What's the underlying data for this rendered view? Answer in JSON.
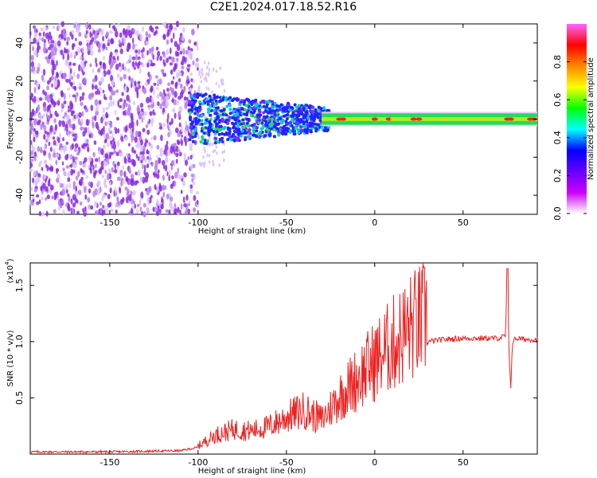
{
  "figure": {
    "title": "C2E1.2024.017.18.52.R16"
  },
  "chart_data": [
    {
      "type": "heatmap",
      "xlabel": "Height of straight line (km)",
      "ylabel": "Frequency (Hz)",
      "xlim": [
        -195,
        92
      ],
      "ylim": [
        -50,
        50
      ],
      "x_ticks": [
        -150,
        -100,
        -50,
        0,
        50
      ],
      "y_ticks": [
        -40,
        -20,
        0,
        20,
        40
      ],
      "colorbar": {
        "label": "Normalized spectral amplitude",
        "range": [
          0,
          1
        ],
        "ticks": [
          "0.0",
          "0.2",
          "0.4",
          "0.6",
          "0.8"
        ],
        "colors": [
          "#ffffff",
          "#cc00ff",
          "#6600ff",
          "#0000ff",
          "#00ffff",
          "#00ff00",
          "#ffff00",
          "#ff8800",
          "#ff0000",
          "#ff66ff"
        ]
      },
      "regions": [
        {
          "x_range": [
            -195,
            -100
          ],
          "description_level": 0.15
        },
        {
          "x_range": [
            -100,
            -30
          ],
          "description_level": 0.35
        },
        {
          "x_range": [
            -30,
            92
          ],
          "description_level": 0.6
        }
      ]
    },
    {
      "type": "line",
      "xlabel": "Height of straight line (km)",
      "ylabel": "SNR (10 * v/v)",
      "y_multiplier": "(x10",
      "y_multiplier_exp": "4",
      "y_multiplier_close": ")",
      "xlim": [
        -195,
        92
      ],
      "ylim": [
        0,
        1.7
      ],
      "x_ticks": [
        -150,
        -100,
        -50,
        0,
        50
      ],
      "y_ticks": [
        0.5,
        1.0,
        1.5
      ],
      "color": "#ee2222",
      "series": [
        {
          "x": [
            -195,
            -150,
            -110,
            -100,
            -90,
            -80,
            -70,
            -60,
            -50,
            -40,
            -30,
            -20,
            -10,
            0,
            10,
            20,
            30,
            40,
            50,
            60,
            70,
            74,
            75,
            76,
            77,
            78,
            80,
            85,
            92
          ],
          "y": [
            0.02,
            0.02,
            0.03,
            0.06,
            0.14,
            0.18,
            0.17,
            0.2,
            0.27,
            0.32,
            0.25,
            0.42,
            0.55,
            0.68,
            0.8,
            0.92,
            1.0,
            1.02,
            1.03,
            1.03,
            1.03,
            1.05,
            1.65,
            0.9,
            0.6,
            1.0,
            1.03,
            1.02,
            1.02
          ]
        }
      ]
    }
  ]
}
